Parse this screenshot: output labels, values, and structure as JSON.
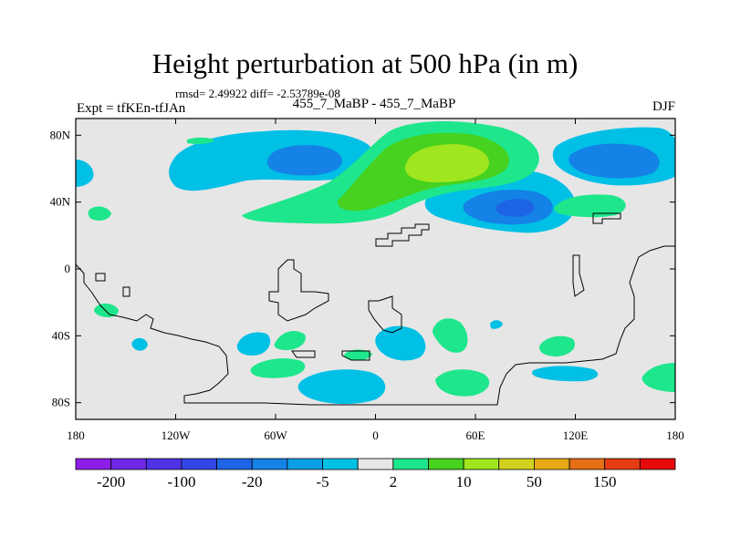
{
  "title": "Height perturbation at 500 hPa (in m)",
  "stats_text": "rmsd= 2.49922 diff= -2.53789e-08",
  "left_label": "Expt = tfKEn-tfJAn",
  "center_label": "455_7_MaBP - 455_7_MaBP",
  "right_label": "DJF",
  "map": {
    "lon_range": [
      -180,
      180
    ],
    "lat_range": [
      -90,
      90
    ],
    "lat_ticks": [
      {
        "value": 80,
        "label": "80N"
      },
      {
        "value": 40,
        "label": "40N"
      },
      {
        "value": 0,
        "label": "0"
      },
      {
        "value": -40,
        "label": "40S"
      },
      {
        "value": -80,
        "label": "80S"
      }
    ],
    "lon_ticks": [
      {
        "value": -180,
        "label": "180"
      },
      {
        "value": -120,
        "label": "120W"
      },
      {
        "value": -60,
        "label": "60W"
      },
      {
        "value": 0,
        "label": "0"
      },
      {
        "value": 60,
        "label": "60E"
      },
      {
        "value": 120,
        "label": "120E"
      },
      {
        "value": 180,
        "label": "180"
      }
    ],
    "background_color": "#e6e6e6"
  },
  "colorbar": {
    "colors": [
      "#8c1ee6",
      "#6e28e6",
      "#5032e6",
      "#3246e6",
      "#1e64e6",
      "#1482e6",
      "#0a9fe6",
      "#00c0e6",
      "#e6e6e6",
      "#1ee68c",
      "#46d21e",
      "#a0e61e",
      "#d2d21e",
      "#e6aa14",
      "#e66e14",
      "#e63c14",
      "#e60a0a"
    ],
    "labels": [
      {
        "text": "-200",
        "boundary": 1
      },
      {
        "text": "-100",
        "boundary": 3
      },
      {
        "text": "-20",
        "boundary": 5
      },
      {
        "text": "-5",
        "boundary": 7
      },
      {
        "text": "2",
        "boundary": 9
      },
      {
        "text": "10",
        "boundary": 11
      },
      {
        "text": "50",
        "boundary": 13
      },
      {
        "text": "150",
        "boundary": 15
      }
    ]
  }
}
